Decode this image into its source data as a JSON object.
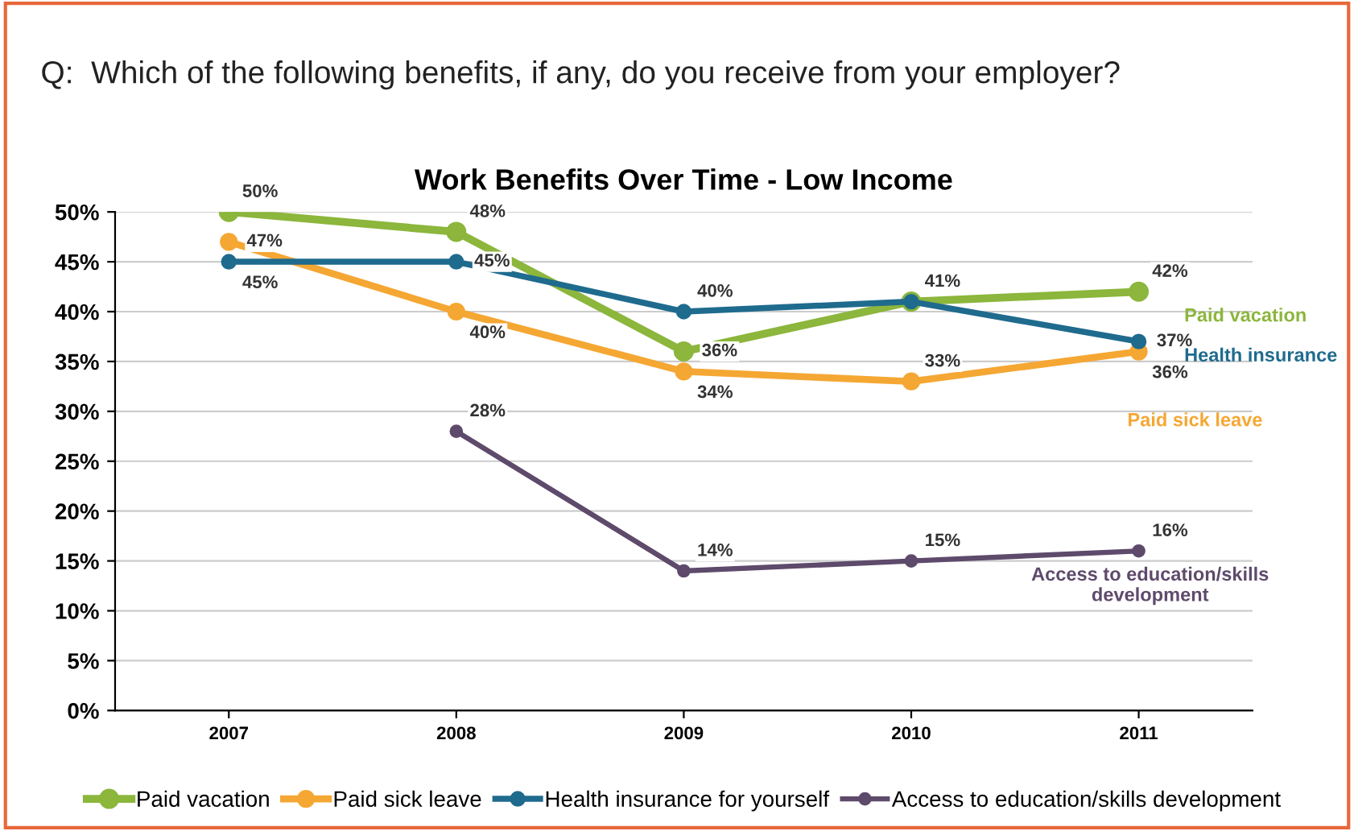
{
  "chart_data": {
    "type": "line",
    "title": "Work Benefits Over Time - Low Income",
    "subtitle": "Q:  Which of the following benefits, if any, do you receive from your employer?",
    "categories": [
      "2007",
      "2008",
      "2009",
      "2010",
      "2011"
    ],
    "series": [
      {
        "name": "Paid vacation",
        "color": "#8cb63c",
        "values": [
          50,
          48,
          36,
          41,
          42
        ],
        "value_labels": [
          "50%",
          "48%",
          "36%",
          null,
          "42%"
        ]
      },
      {
        "name": "Paid sick leave",
        "color": "#f5a733",
        "values": [
          47,
          40,
          34,
          33,
          36
        ],
        "value_labels": [
          "47%",
          "40%",
          "34%",
          "33%",
          "36%"
        ]
      },
      {
        "name": "Health insurance for yourself",
        "color": "#1f6b8e",
        "values": [
          45,
          45,
          40,
          41,
          37
        ],
        "value_labels": [
          "45%",
          "45%",
          "40%",
          "41%",
          "37%"
        ]
      },
      {
        "name": "Access to education/skills development",
        "color": "#5e4a6b",
        "values": [
          null,
          28,
          14,
          15,
          16
        ],
        "value_labels": [
          null,
          "28%",
          "14%",
          "15%",
          "16%"
        ]
      }
    ],
    "annotations": [
      "Paid vacation",
      "Paid sick leave",
      "Health insurance",
      "Access to education/skills\ndevelopment"
    ],
    "ylim": [
      0,
      50
    ],
    "yticks": [
      {
        "value": 0,
        "label": "0%"
      },
      {
        "value": 5,
        "label": "5%"
      },
      {
        "value": 10,
        "label": "10%"
      },
      {
        "value": 15,
        "label": "15%"
      },
      {
        "value": 20,
        "label": "20%"
      },
      {
        "value": 25,
        "label": "25%"
      },
      {
        "value": 30,
        "label": "30%"
      },
      {
        "value": 35,
        "label": "35%"
      },
      {
        "value": 40,
        "label": "40%"
      },
      {
        "value": 45,
        "label": "45%"
      },
      {
        "value": 50,
        "label": "50%"
      }
    ],
    "grid": "y",
    "legend": "bottom",
    "marker": "circle",
    "line_style": "solid"
  }
}
